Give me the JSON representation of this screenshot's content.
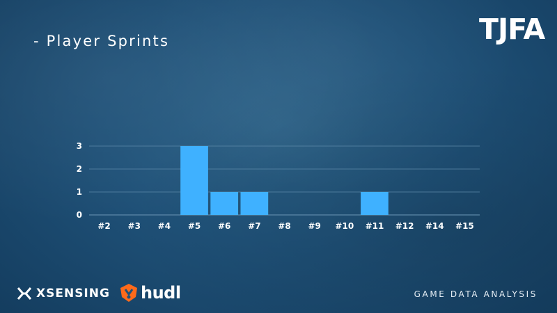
{
  "page": {
    "title": "- Player Sprints",
    "brand_logo": "TJFA",
    "footer_caption": "GAME DATA ANALYSIS",
    "sponsors": {
      "xsensing_logo": "XSENSING",
      "xsensing_icon": "xsensing-x-icon",
      "hudl_logo": "hudl",
      "hudl_icon": "hudl-shield-icon"
    }
  },
  "colors": {
    "background": "#1f5178",
    "bar": "#3fb1ff",
    "grid": "#5d88a8",
    "text": "#ffffff",
    "hudl_orange": "#ff6a1a"
  },
  "chart_data": {
    "type": "bar",
    "title": "",
    "xlabel": "",
    "ylabel": "",
    "categories": [
      "#2",
      "#3",
      "#4",
      "#5",
      "#6",
      "#7",
      "#8",
      "#9",
      "#10",
      "#11",
      "#12",
      "#14",
      "#15"
    ],
    "values": [
      0,
      0,
      0,
      3,
      1,
      1,
      0,
      0,
      0,
      1,
      0,
      0,
      0
    ],
    "ylim": [
      0,
      3
    ],
    "yticks": [
      0,
      1,
      2,
      3
    ],
    "grid": true,
    "legend": "none"
  }
}
